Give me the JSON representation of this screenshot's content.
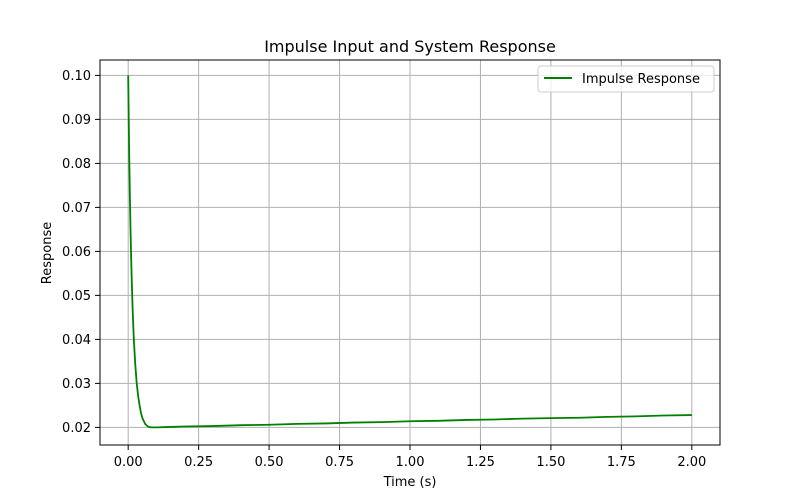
{
  "chart_data": {
    "type": "line",
    "title": "Impulse Input and System Response",
    "xlabel": "Time (s)",
    "ylabel": "Response",
    "xlim": [
      -0.1,
      2.1
    ],
    "ylim": [
      0.016,
      0.1035
    ],
    "xticks": [
      0.0,
      0.25,
      0.5,
      0.75,
      1.0,
      1.25,
      1.5,
      1.75,
      2.0
    ],
    "xtick_labels": [
      "0.00",
      "0.25",
      "0.50",
      "0.75",
      "1.00",
      "1.25",
      "1.50",
      "1.75",
      "2.00"
    ],
    "yticks": [
      0.02,
      0.03,
      0.04,
      0.05,
      0.06,
      0.07,
      0.08,
      0.09,
      0.1
    ],
    "ytick_labels": [
      "0.02",
      "0.03",
      "0.04",
      "0.05",
      "0.06",
      "0.07",
      "0.08",
      "0.09",
      "0.10"
    ],
    "grid": true,
    "legend": "upper-right",
    "series": [
      {
        "name": "Impulse Response",
        "color": "#008000",
        "x": [
          0.0,
          0.002,
          0.004,
          0.006,
          0.008,
          0.01,
          0.013,
          0.016,
          0.02,
          0.025,
          0.03,
          0.035,
          0.04,
          0.045,
          0.05,
          0.06,
          0.07,
          0.08,
          0.1,
          0.15,
          0.2,
          0.3,
          0.4,
          0.5,
          0.6,
          0.7,
          0.8,
          0.9,
          1.0,
          1.1,
          1.2,
          1.3,
          1.4,
          1.5,
          1.6,
          1.7,
          1.8,
          1.9,
          2.0
        ],
        "y": [
          0.1,
          0.0895,
          0.0804,
          0.0726,
          0.0658,
          0.06,
          0.0525,
          0.0465,
          0.0401,
          0.0344,
          0.0302,
          0.0273,
          0.0252,
          0.0234,
          0.0222,
          0.0208,
          0.0202,
          0.02,
          0.02,
          0.0201,
          0.0202,
          0.0203,
          0.0205,
          0.0206,
          0.0208,
          0.0209,
          0.0211,
          0.0212,
          0.0214,
          0.0215,
          0.0217,
          0.0218,
          0.022,
          0.0221,
          0.0222,
          0.0224,
          0.0225,
          0.0227,
          0.0228
        ]
      }
    ]
  }
}
